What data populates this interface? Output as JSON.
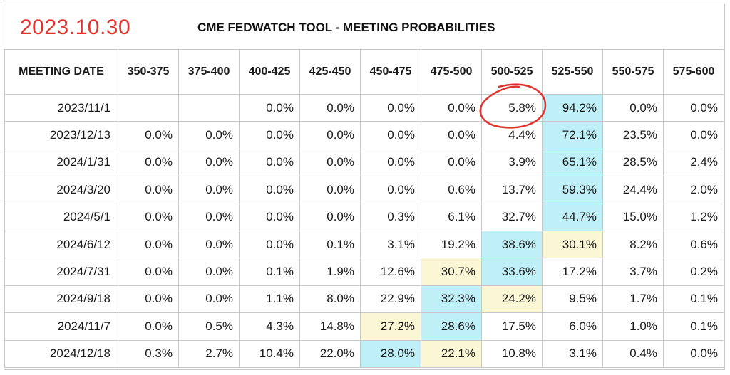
{
  "date_label": "2023.10.30",
  "title": "CME FEDWATCH TOOL - MEETING PROBABILITIES",
  "headers": [
    "MEETING DATE",
    "350-375",
    "375-400",
    "400-425",
    "425-450",
    "450-475",
    "475-500",
    "500-525",
    "525-550",
    "550-575",
    "575-600"
  ],
  "rows": [
    [
      "2023/11/1",
      "",
      "",
      "0.0%",
      "0.0%",
      "0.0%",
      "0.0%",
      "5.8%",
      "94.2%",
      "0.0%",
      "0.0%"
    ],
    [
      "2023/12/13",
      "0.0%",
      "0.0%",
      "0.0%",
      "0.0%",
      "0.0%",
      "0.0%",
      "4.4%",
      "72.1%",
      "23.5%",
      "0.0%"
    ],
    [
      "2024/1/31",
      "0.0%",
      "0.0%",
      "0.0%",
      "0.0%",
      "0.0%",
      "0.0%",
      "3.9%",
      "65.1%",
      "28.5%",
      "2.4%"
    ],
    [
      "2024/3/20",
      "0.0%",
      "0.0%",
      "0.0%",
      "0.0%",
      "0.0%",
      "0.6%",
      "13.7%",
      "59.3%",
      "24.4%",
      "2.0%"
    ],
    [
      "2024/5/1",
      "0.0%",
      "0.0%",
      "0.0%",
      "0.0%",
      "0.3%",
      "6.1%",
      "32.7%",
      "44.7%",
      "15.0%",
      "1.2%"
    ],
    [
      "2024/6/12",
      "0.0%",
      "0.0%",
      "0.0%",
      "0.1%",
      "3.1%",
      "19.2%",
      "38.6%",
      "30.1%",
      "8.2%",
      "0.6%"
    ],
    [
      "2024/7/31",
      "0.0%",
      "0.0%",
      "0.1%",
      "1.9%",
      "12.6%",
      "30.7%",
      "33.6%",
      "17.2%",
      "3.7%",
      "0.2%"
    ],
    [
      "2024/9/18",
      "0.0%",
      "0.0%",
      "1.1%",
      "8.0%",
      "22.9%",
      "32.3%",
      "24.2%",
      "9.5%",
      "1.7%",
      "0.1%"
    ],
    [
      "2024/11/7",
      "0.0%",
      "0.5%",
      "4.3%",
      "14.8%",
      "27.2%",
      "28.6%",
      "17.5%",
      "6.0%",
      "1.0%",
      "0.1%"
    ],
    [
      "2024/12/18",
      "0.3%",
      "2.7%",
      "10.4%",
      "22.0%",
      "28.0%",
      "22.1%",
      "10.8%",
      "3.1%",
      "0.4%",
      "0.0%"
    ]
  ],
  "highlight_colors": {
    "max": "#bff0f7",
    "second": "#fbf7d4",
    "annotation": "#e2322b"
  }
}
